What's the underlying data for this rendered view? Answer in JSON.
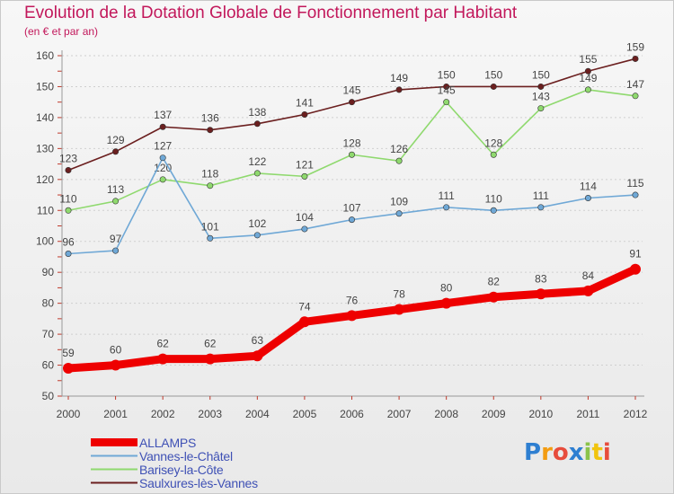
{
  "header": {
    "title": "Evolution de la Dotation Globale de Fonctionnement par Habitant",
    "subtitle": "(en € et par an)"
  },
  "brand": {
    "text": "Proxiti",
    "letter_colors": [
      "#2e7fd1",
      "#f39c12",
      "#e74c3c",
      "#2e7fd1",
      "#8bc34a",
      "#f1c40f",
      "#e74c3c"
    ]
  },
  "chart_data": {
    "type": "line",
    "x": [
      "2000",
      "2001",
      "2002",
      "2003",
      "2004",
      "2005",
      "2006",
      "2007",
      "2008",
      "2009",
      "2010",
      "2011",
      "2012"
    ],
    "ylim": [
      50,
      160
    ],
    "yticks": [
      50,
      60,
      70,
      80,
      90,
      100,
      110,
      120,
      130,
      140,
      150,
      160
    ],
    "title": "Evolution de la Dotation Globale de Fonctionnement par Habitant",
    "subtitle": "(en € et par an)",
    "grid": "horizontal-dotted",
    "legend_position": "bottom-left",
    "series": [
      {
        "name": "Saulxures-lès-Vannes",
        "color": "#6b1f1f",
        "values": [
          123,
          129,
          137,
          136,
          138,
          141,
          145,
          149,
          150,
          150,
          150,
          155,
          159
        ]
      },
      {
        "name": "Barisey-la-Côte",
        "color": "#8fd96e",
        "values": [
          110,
          113,
          120,
          118,
          122,
          121,
          128,
          126,
          145,
          128,
          143,
          149,
          147
        ]
      },
      {
        "name": "Vannes-le-Châtel",
        "color": "#6fa8d6",
        "values": [
          96,
          97,
          127,
          101,
          102,
          104,
          107,
          109,
          111,
          110,
          111,
          114,
          115
        ]
      },
      {
        "name": "ALLAMPS",
        "color": "#ee0000",
        "values": [
          59,
          60,
          62,
          62,
          63,
          74,
          76,
          78,
          80,
          82,
          83,
          84,
          91
        ]
      }
    ]
  },
  "legend": {
    "items": [
      {
        "label": "ALLAMPS",
        "color": "#ee0000"
      },
      {
        "label": "Vannes-le-Châtel",
        "color": "#6fa8d6"
      },
      {
        "label": "Barisey-la-Côte",
        "color": "#8fd96e"
      },
      {
        "label": "Saulxures-lès-Vannes",
        "color": "#6b1f1f"
      }
    ]
  }
}
